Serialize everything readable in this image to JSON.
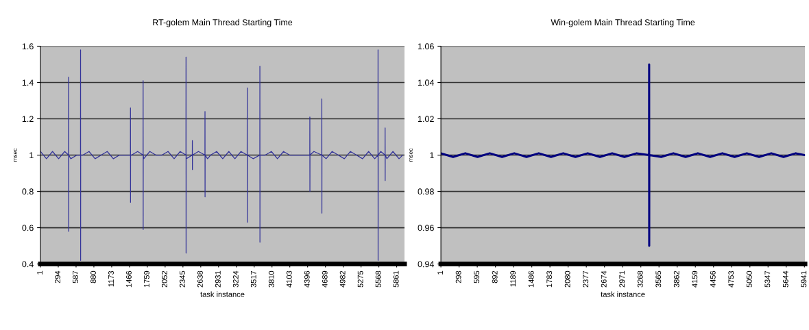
{
  "chart_data": [
    {
      "type": "line",
      "title": "RT-golem Main Thread Starting Time",
      "xlabel": "task instance",
      "ylabel": "msec",
      "grid": "y",
      "legend": false,
      "marker": "none",
      "line_style": "solid",
      "xlim": [
        1,
        5990
      ],
      "ylim": [
        0.4,
        1.6
      ],
      "yticks": [
        0.4,
        0.6,
        0.8,
        1,
        1.2,
        1.4,
        1.6
      ],
      "xticks": [
        1,
        294,
        587,
        880,
        1173,
        1466,
        1759,
        2052,
        2345,
        2638,
        2931,
        3224,
        3517,
        3810,
        4103,
        4396,
        4689,
        4982,
        5275,
        5568,
        5861
      ],
      "series": [
        {
          "color": "#333399",
          "x": [
            1,
            100,
            200,
            300,
            400,
            463,
            464,
            465,
            466,
            500,
            600,
            660,
            661,
            662,
            663,
            700,
            800,
            900,
            1000,
            1100,
            1200,
            1300,
            1400,
            1481,
            1482,
            1483,
            1484,
            1500,
            1600,
            1689,
            1690,
            1691,
            1692,
            1700,
            1800,
            1900,
            2000,
            2100,
            2200,
            2300,
            2395,
            2396,
            2397,
            2398,
            2400,
            2499,
            2500,
            2501,
            2502,
            2600,
            2707,
            2708,
            2709,
            2710,
            2750,
            2800,
            2900,
            3000,
            3100,
            3200,
            3300,
            3402,
            3403,
            3404,
            3405,
            3500,
            3610,
            3611,
            3612,
            3613,
            3700,
            3800,
            3900,
            4000,
            4100,
            4200,
            4300,
            4432,
            4433,
            4434,
            4435,
            4500,
            4629,
            4630,
            4631,
            4632,
            4700,
            4800,
            4900,
            5000,
            5100,
            5200,
            5300,
            5400,
            5500,
            5554,
            5555,
            5556,
            5557,
            5600,
            5670,
            5671,
            5672,
            5673,
            5700,
            5800,
            5900,
            5959
          ],
          "values": [
            1.02,
            0.98,
            1.02,
            0.98,
            1.02,
            1,
            1.43,
            0.58,
            1,
            0.98,
            1,
            1,
            1.58,
            0.42,
            1,
            1,
            1.02,
            0.98,
            1,
            1.02,
            0.98,
            1,
            1,
            1,
            1.26,
            0.74,
            1,
            1,
            1.02,
            1,
            1.41,
            0.59,
            1,
            0.98,
            1.02,
            1,
            1,
            1.02,
            0.98,
            1.02,
            1,
            1.54,
            0.46,
            1,
            0.98,
            1,
            1.08,
            0.92,
            1,
            1.02,
            1,
            1.24,
            0.77,
            1,
            0.98,
            1,
            1.02,
            0.98,
            1.02,
            0.98,
            1.02,
            1,
            1.37,
            0.63,
            1,
            0.98,
            1,
            1.49,
            0.52,
            1,
            1,
            1.02,
            0.98,
            1.02,
            1,
            1,
            1,
            1,
            1.21,
            0.8,
            1,
            1.02,
            1,
            1.31,
            0.68,
            1,
            0.98,
            1.02,
            1,
            0.98,
            1.02,
            1,
            0.98,
            1.02,
            0.98,
            1,
            1.58,
            0.42,
            1,
            1.02,
            1,
            1.15,
            0.86,
            1,
            0.98,
            1.02,
            0.98,
            1
          ]
        }
      ]
    },
    {
      "type": "line",
      "title": "Win-golem Main Thread Starting Time",
      "xlabel": "task instance",
      "ylabel": "msec",
      "grid": "y",
      "legend": false,
      "marker": "none",
      "line_style": "solid",
      "xlim": [
        1,
        5950
      ],
      "ylim": [
        0.94,
        1.06
      ],
      "yticks": [
        0.94,
        0.96,
        0.98,
        1,
        1.02,
        1.04,
        1.06
      ],
      "xticks": [
        1,
        298,
        595,
        892,
        1189,
        1486,
        1783,
        2080,
        2377,
        2674,
        2971,
        3268,
        3565,
        3862,
        4159,
        4456,
        4753,
        5050,
        5347,
        5644,
        5941
      ],
      "series": [
        {
          "color": "#000080",
          "x": [
            1,
            200,
            400,
            600,
            800,
            1000,
            1200,
            1400,
            1600,
            1800,
            2000,
            2200,
            2400,
            2600,
            2800,
            3000,
            3200,
            3403,
            3404,
            3405,
            3406,
            3600,
            3800,
            4000,
            4200,
            4400,
            4600,
            4800,
            5000,
            5200,
            5400,
            5600,
            5800,
            5950
          ],
          "values": [
            1.001,
            0.999,
            1.001,
            0.999,
            1.001,
            0.999,
            1.001,
            0.999,
            1.001,
            0.999,
            1.001,
            0.999,
            1.001,
            0.999,
            1.001,
            0.999,
            1.001,
            1,
            1.05,
            0.95,
            1,
            0.999,
            1.001,
            0.999,
            1.001,
            0.999,
            1.001,
            0.999,
            1.001,
            0.999,
            1.001,
            0.999,
            1.001,
            1
          ]
        }
      ]
    }
  ]
}
